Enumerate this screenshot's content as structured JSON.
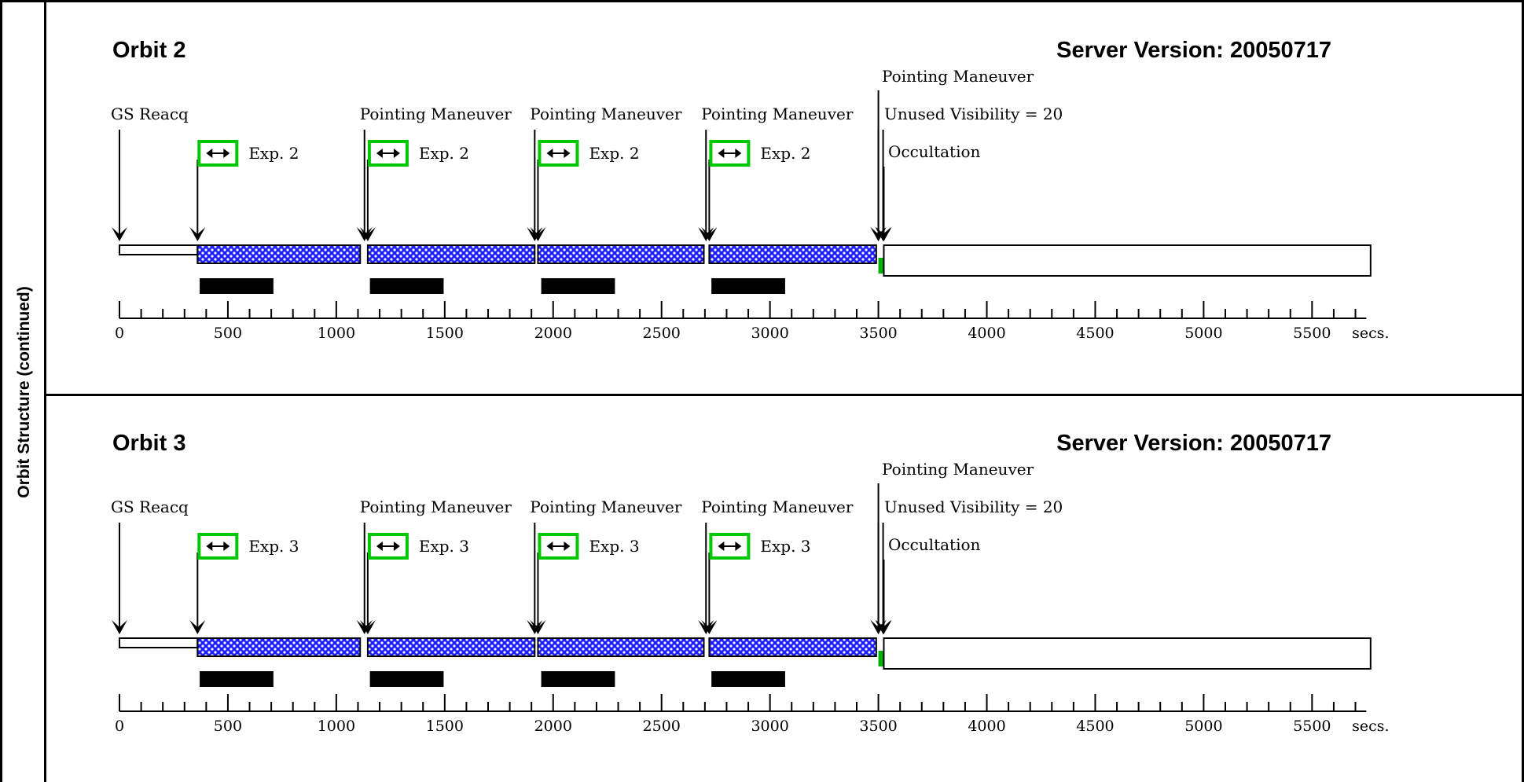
{
  "sidebar": {
    "label": "Orbit Structure (continued)"
  },
  "panels": [
    {
      "orbit_title": "Orbit 2",
      "server_version": "Server Version: 20050717",
      "exposure_label": "Exp. 2"
    },
    {
      "orbit_title": "Orbit 3",
      "server_version": "Server Version: 20050717",
      "exposure_label": "Exp. 3"
    }
  ],
  "events": {
    "gs_reacq": "GS Reacq",
    "pointing_maneuver": "Pointing Maneuver",
    "unused_visibility": "Unused Visibility = 20",
    "occultation": "Occultation"
  },
  "exposure_icon": "double-arrow-icon",
  "timeline": {
    "unit": "secs.",
    "ticks": [
      0,
      500,
      1000,
      1500,
      2000,
      2500,
      3000,
      3500,
      4000,
      4500,
      5000,
      5500
    ],
    "xlim": [
      0,
      5800
    ],
    "gs_reacq_time": 0,
    "guide_star_acq_segment": [
      0,
      360
    ],
    "exposure_segments": [
      [
        360,
        1110
      ],
      [
        1145,
        1915
      ],
      [
        1930,
        2695
      ],
      [
        2720,
        3490
      ]
    ],
    "exposure_starts": [
      360,
      1145,
      1930,
      2720
    ],
    "pointing_maneuver_times": [
      1130,
      1915,
      2705,
      3500
    ],
    "unused_visibility_segment": [
      3500,
      3520
    ],
    "occultation_segment": [
      3525,
      5770
    ],
    "occultation_time": 3525,
    "readout_bars": [
      [
        370,
        710
      ],
      [
        1155,
        1495
      ],
      [
        1945,
        2285
      ],
      [
        2730,
        3070
      ]
    ]
  },
  "colors": {
    "exposure_fill": "#1e1eff",
    "exposure_box": "#00c800",
    "readout_bar": "#000000",
    "unused_visibility": "#00b000"
  }
}
